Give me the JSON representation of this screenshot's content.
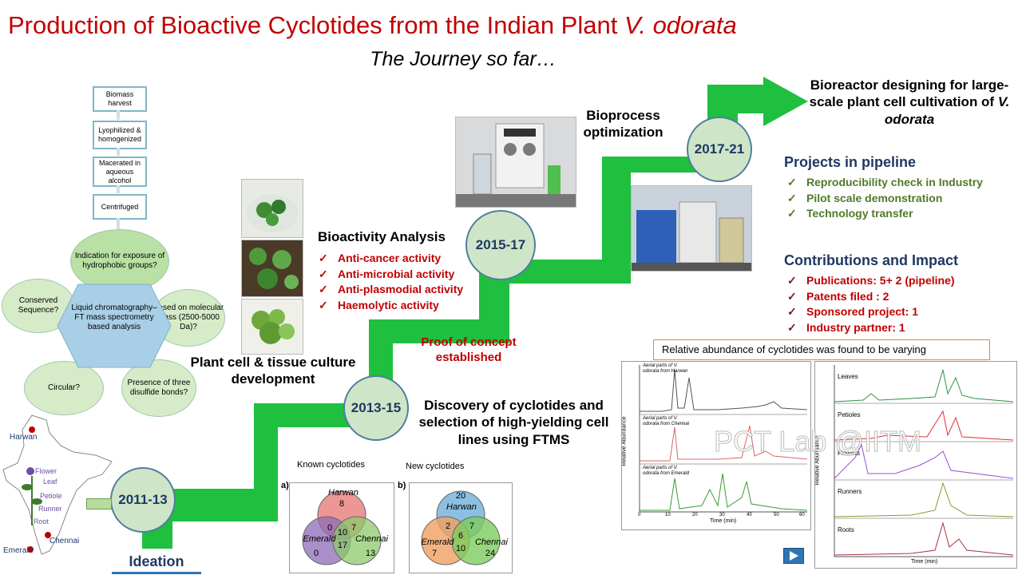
{
  "title": {
    "main": "Production of Bioactive Cyclotides from the Indian Plant ",
    "italic": "V. odorata"
  },
  "subtitle": "The Journey so far…",
  "timeline": {
    "stages": [
      {
        "year": "2011-13",
        "label": "Ideation"
      },
      {
        "year": "2013-15",
        "label": "Discovery of cyclotides and selection of high-yielding cell lines using FTMS"
      },
      {
        "year": "2015-17",
        "label": "Bioactivity Analysis"
      },
      {
        "year": "2017-21",
        "label": "Bioprocess optimization"
      }
    ],
    "plant_culture_label": "Plant cell & tissue culture development",
    "proof_of_concept": "Proof of concept established",
    "bioreactor_label_1": "Bioreactor designing for large-scale plant cell cultivation of ",
    "bioreactor_label_italic": "V. odorata"
  },
  "bioactivity_list": [
    "Anti-cancer activity",
    "Anti-microbial activity",
    "Anti-plasmodial activity",
    "Haemolytic activity"
  ],
  "projects_in_pipeline": {
    "heading": "Projects in pipeline",
    "items": [
      "Reproducibility check in Industry",
      "Pilot scale demonstration",
      "Technology transfer"
    ]
  },
  "contributions": {
    "heading": "Contributions and Impact",
    "items": [
      "Publications: 5+ 2 (pipeline)",
      "Patents filed : 2",
      "Sponsored project: 1",
      "Industry partner: 1"
    ]
  },
  "flowchart": {
    "steps": [
      "Biomass harvest",
      "Lyophilized & homogenized",
      "Macerated in aqueous alcohol",
      "Centrifuged"
    ],
    "center": "Liquid chromatography–FT mass spectrometry based analysis",
    "petals": [
      "Indication for exposure of hydrophobic groups?",
      "Based on molecular mass (2500-5000 Da)?",
      "Presence of three disulfide bonds?",
      "Circular?",
      "Conserved Sequence?"
    ]
  },
  "map": {
    "places": [
      "Harwan",
      "Emerald",
      "Chennai"
    ],
    "plant_parts": [
      "Flower",
      "Leaf",
      "Petiole",
      "Runner",
      "Root"
    ]
  },
  "venn": {
    "known": {
      "title": "Known cyclotides",
      "tag": "a)",
      "sets": [
        "Harwan",
        "Emerald",
        "Chennai"
      ],
      "values": {
        "harwan_only": "8",
        "emerald_only": "0",
        "chennai_only": "13",
        "h_e": "0",
        "h_c": "7",
        "e_c": "17",
        "all": "10"
      }
    },
    "new": {
      "title": "New cyclotides",
      "tag": "b)",
      "sets": [
        "Harwan",
        "Emerald",
        "Chennai"
      ],
      "values": {
        "harwan_only": "20",
        "emerald_only": "7",
        "chennai_only": "24",
        "h_e": "2",
        "h_c": "7",
        "e_c": "10",
        "all": "6"
      }
    }
  },
  "chromatogram_note": "Relative abundance of cyclotides was found to be varying",
  "chromatograms": {
    "left_rows": [
      "Aerial parts of V. odorata from Harwan",
      "Aerial parts of V. odorata from Chennai",
      "Aerial parts of V. odorata from Emerald"
    ],
    "right_rows": [
      "Leaves",
      "Petioles",
      "Flowers",
      "Runners",
      "Roots"
    ],
    "x_axis": "Time (min)",
    "y_axis": "Relative Abundance",
    "x_ticks": [
      "0",
      "10",
      "20",
      "30",
      "40",
      "50",
      "60"
    ]
  },
  "watermark": "PCT Lab @IITM",
  "colors": {
    "path_green": "#1fbf40",
    "title_red": "#c00000",
    "navy": "#1f3864",
    "circle_fill": "#cfe5c8"
  }
}
